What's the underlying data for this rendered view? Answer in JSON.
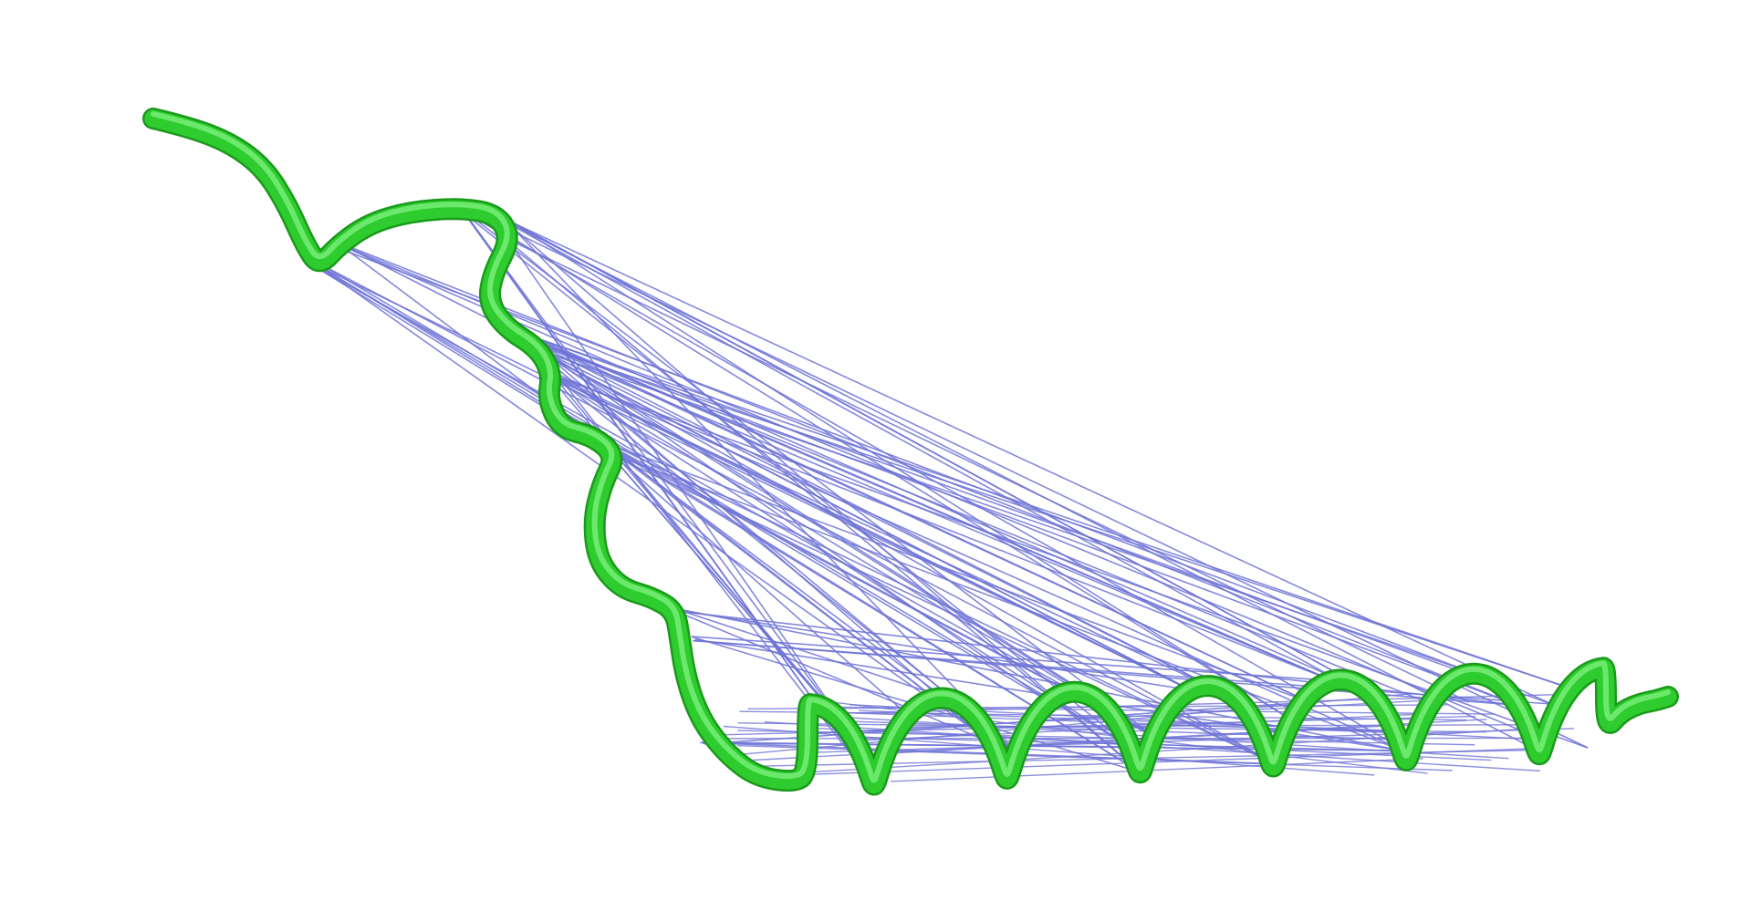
{
  "scene": {
    "description_visible_text": "",
    "background_color": "#ffffff",
    "backbone_color": "#2ecc2e",
    "backbone_highlight_color": "#7cf07c",
    "backbone_shadow_color": "#1a9a1a",
    "contact_line_color": "#6f73d6",
    "contact_count": 90,
    "helix_turns": 6
  }
}
